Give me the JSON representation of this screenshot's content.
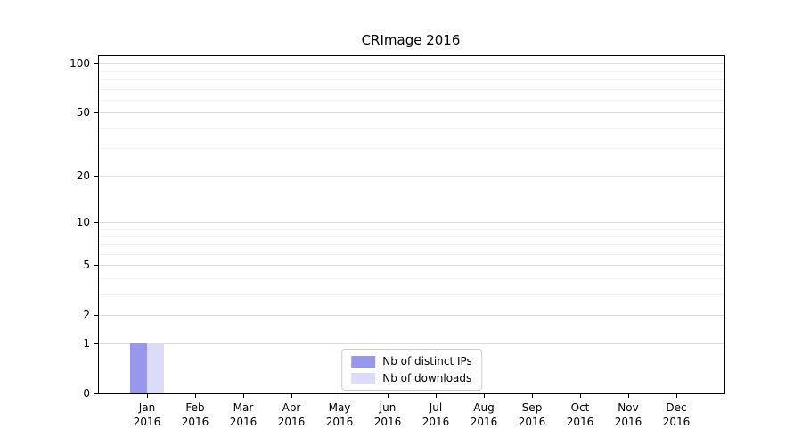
{
  "chart_data": {
    "type": "bar",
    "title": "CRImage 2016",
    "categories": [
      "Jan\n2016",
      "Feb\n2016",
      "Mar\n2016",
      "Apr\n2016",
      "May\n2016",
      "Jun\n2016",
      "Jul\n2016",
      "Aug\n2016",
      "Sep\n2016",
      "Oct\n2016",
      "Nov\n2016",
      "Dec\n2016"
    ],
    "series": [
      {
        "name": "Nb of distinct IPs",
        "color": "#9797ec",
        "values": [
          1,
          0,
          0,
          0,
          0,
          0,
          0,
          0,
          0,
          0,
          0,
          0
        ]
      },
      {
        "name": "Nb of downloads",
        "color": "#dcdcf8",
        "values": [
          1,
          0,
          0,
          0,
          0,
          0,
          0,
          0,
          0,
          0,
          0,
          0
        ]
      }
    ],
    "xlabel": "",
    "ylabel": "",
    "yscale": "log1p",
    "ylim": [
      0,
      111
    ],
    "y_major_ticks": [
      0,
      1,
      2,
      5,
      10,
      20,
      50,
      100
    ],
    "y_minor_ticks": [
      3,
      4,
      6,
      7,
      8,
      9,
      30,
      40,
      60,
      70,
      80,
      90
    ],
    "grid": true,
    "legend_position": "lower center"
  }
}
